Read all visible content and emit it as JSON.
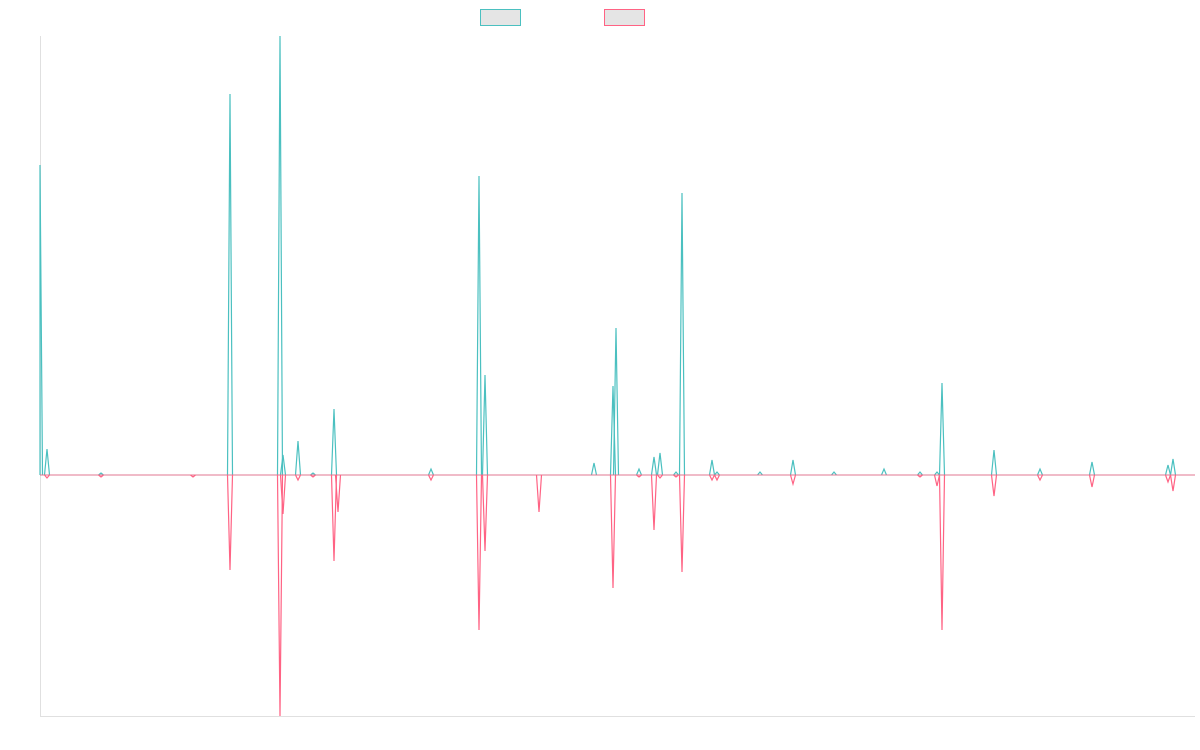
{
  "chart_data": {
    "type": "line",
    "title": "",
    "xlabel": "",
    "ylabel": "",
    "xlim": [
      0,
      1155
    ],
    "ylim": [
      -241,
      439
    ],
    "grid": false,
    "legend": {
      "placement": "top-center",
      "entries": [
        {
          "name": "",
          "color": "#4bc0c0"
        },
        {
          "name": "",
          "color": "#ff6384"
        }
      ]
    },
    "series": [
      {
        "name": "",
        "color": "#4bc0c0",
        "spikes": [
          [
            0,
            310
          ],
          [
            7,
            26
          ],
          [
            61,
            2
          ],
          [
            190,
            381
          ],
          [
            240,
            439
          ],
          [
            243,
            20
          ],
          [
            258,
            34
          ],
          [
            273,
            2
          ],
          [
            294,
            66
          ],
          [
            391,
            6
          ],
          [
            439,
            299
          ],
          [
            445,
            100
          ],
          [
            554,
            12
          ],
          [
            573,
            89
          ],
          [
            576,
            147
          ],
          [
            599,
            6
          ],
          [
            614,
            18
          ],
          [
            620,
            22
          ],
          [
            636,
            3
          ],
          [
            642,
            282
          ],
          [
            672,
            15
          ],
          [
            677,
            3
          ],
          [
            720,
            3
          ],
          [
            753,
            15
          ],
          [
            794,
            3
          ],
          [
            844,
            6
          ],
          [
            880,
            3
          ],
          [
            897,
            3
          ],
          [
            902,
            92
          ],
          [
            954,
            25
          ],
          [
            1000,
            6
          ],
          [
            1052,
            13
          ],
          [
            1128,
            10
          ],
          [
            1133,
            16
          ]
        ]
      },
      {
        "name": "",
        "color": "#ff6384",
        "spikes": [
          [
            7,
            -3
          ],
          [
            61,
            -2
          ],
          [
            153,
            -2
          ],
          [
            190,
            -95
          ],
          [
            240,
            -241
          ],
          [
            243,
            -39
          ],
          [
            258,
            -5
          ],
          [
            273,
            -2
          ],
          [
            294,
            -86
          ],
          [
            298,
            -37
          ],
          [
            391,
            -5
          ],
          [
            439,
            -155
          ],
          [
            445,
            -76
          ],
          [
            499,
            -37
          ],
          [
            573,
            -113
          ],
          [
            599,
            -2
          ],
          [
            614,
            -55
          ],
          [
            620,
            -3
          ],
          [
            636,
            -2
          ],
          [
            642,
            -97
          ],
          [
            672,
            -5
          ],
          [
            677,
            -5
          ],
          [
            753,
            -9
          ],
          [
            880,
            -2
          ],
          [
            897,
            -11
          ],
          [
            902,
            -155
          ],
          [
            954,
            -21
          ],
          [
            1000,
            -5
          ],
          [
            1052,
            -12
          ],
          [
            1128,
            -7
          ],
          [
            1133,
            -16
          ]
        ]
      }
    ]
  }
}
